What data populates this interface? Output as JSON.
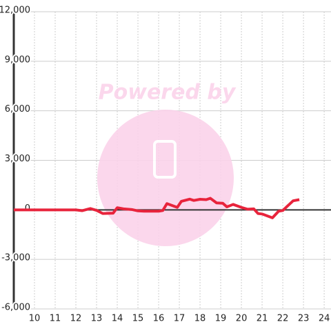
{
  "chart_data": {
    "type": "line",
    "watermark": "Powered by",
    "x": [
      9,
      12,
      12.3,
      12.7,
      13.0,
      13.3,
      13.8,
      14.0,
      14.3,
      14.7,
      15.0,
      15.3,
      16.0,
      16.2,
      16.4,
      16.9,
      17.1,
      17.5,
      17.7,
      18.0,
      18.3,
      18.5,
      18.8,
      19.1,
      19.3,
      19.6,
      20.0,
      20.3,
      20.6,
      20.8,
      21.0,
      21.5,
      21.8,
      22.0,
      22.2,
      22.5,
      22.8
    ],
    "series": [
      {
        "color": "#e8243c",
        "values": [
          0,
          0,
          -50,
          80,
          -30,
          -220,
          -200,
          130,
          60,
          20,
          -60,
          -80,
          -80,
          -40,
          380,
          150,
          520,
          650,
          570,
          640,
          620,
          700,
          420,
          400,
          180,
          330,
          150,
          40,
          60,
          -220,
          -250,
          -480,
          -80,
          -40,
          200,
          550,
          620
        ]
      }
    ],
    "xlim": [
      9,
      24.33
    ],
    "xticks": [
      10,
      11,
      12,
      13,
      14,
      15,
      16,
      17,
      18,
      19,
      20,
      21,
      22,
      23,
      24
    ],
    "ylim": [
      -6000,
      12000
    ],
    "yticks": [
      {
        "value": -6000,
        "label": "-6,000"
      },
      {
        "value": -3000,
        "label": "-3,000"
      },
      0,
      {
        "value": 3000,
        "label": "3,000"
      },
      {
        "value": 6000,
        "label": "6,000"
      },
      {
        "value": 9000,
        "label": "9,000"
      },
      {
        "value": 12000,
        "label": "12,000"
      }
    ],
    "grid": true
  }
}
